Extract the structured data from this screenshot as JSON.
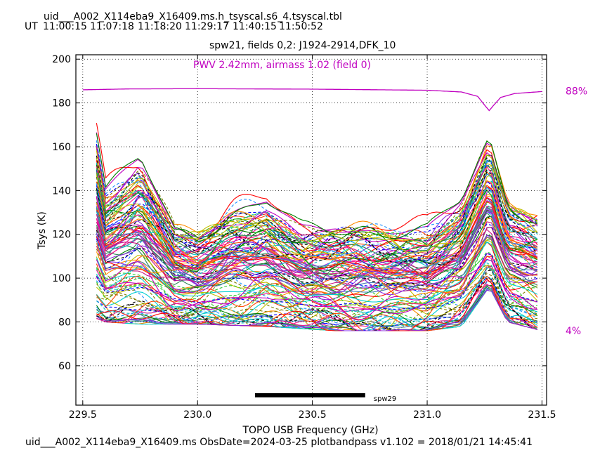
{
  "header": {
    "filename": "uid___A002_X114eba9_X16409.ms.h_tsyscal.s6_4.tsyscal.tbl",
    "ut_label": "UT",
    "ut_times": [
      "11:00:15",
      "11:07:18",
      "11:18:20",
      "11:29:17",
      "11:40:15",
      "11:50:52"
    ]
  },
  "footer": {
    "text": "uid___A002_X114eba9_X16409.ms  ObsDate=2024-03-25   plotbandpass v1.102 = 2018/01/21 14:45:41"
  },
  "colors": {
    "atmosphere": "#c000c0",
    "frame": "#000000",
    "grid": "#000000",
    "bandbar": "#000000"
  },
  "chart_data": {
    "type": "line",
    "title": "spw21,  fields 0,2: J1924-2914,DFK_10",
    "annotation": "PWV 2.42mm, airmass 1.02 (field 0)",
    "xlabel": "TOPO USB Frequency (GHz)",
    "ylabel": "Tsys (K)",
    "xlim": [
      229.47,
      231.52
    ],
    "ylim": [
      42,
      202
    ],
    "xticks": [
      229.5,
      230.0,
      230.5,
      231.0,
      231.5
    ],
    "xtick_labels": [
      "229.5",
      "230.0",
      "230.5",
      "231.0",
      "231.5"
    ],
    "yticks": [
      60,
      80,
      100,
      120,
      140,
      160,
      180,
      200
    ],
    "ytick_labels": [
      "60",
      "80",
      "100",
      "120",
      "140",
      "160",
      "180",
      "200"
    ],
    "grid": true,
    "right_axis": {
      "labels": [
        "88%",
        "4%"
      ],
      "values": [
        88,
        4
      ],
      "label_positions_tsys": [
        185.5,
        76
      ]
    },
    "band_bar": {
      "label": "spw29",
      "x_start": 230.25,
      "x_end": 230.73,
      "y": 46.5
    },
    "atmosphere_curve": {
      "name": "atmospheric transmission",
      "x": [
        229.5,
        229.7,
        230.0,
        230.5,
        231.0,
        231.15,
        231.22,
        231.25,
        231.27,
        231.29,
        231.32,
        231.38,
        231.5
      ],
      "y": [
        186,
        186.4,
        186.5,
        186.3,
        185.8,
        185.0,
        183.0,
        179.0,
        176.5,
        179.0,
        182.5,
        184.3,
        185.2
      ]
    },
    "series_envelope": {
      "description": "many antenna/polarization Tsys spectra (solid and dashed)",
      "x": [
        229.55,
        229.6,
        229.75,
        229.9,
        230.0,
        230.15,
        230.3,
        230.45,
        230.6,
        230.8,
        231.0,
        231.15,
        231.27,
        231.35,
        231.5
      ],
      "low": [
        82,
        80,
        79,
        79,
        79,
        78.5,
        78,
        77,
        76,
        76,
        76,
        78,
        96,
        80,
        76
      ],
      "high": [
        190,
        150,
        168,
        130,
        128,
        140,
        145,
        130,
        131,
        131,
        130,
        145,
        175,
        145,
        137
      ]
    }
  }
}
